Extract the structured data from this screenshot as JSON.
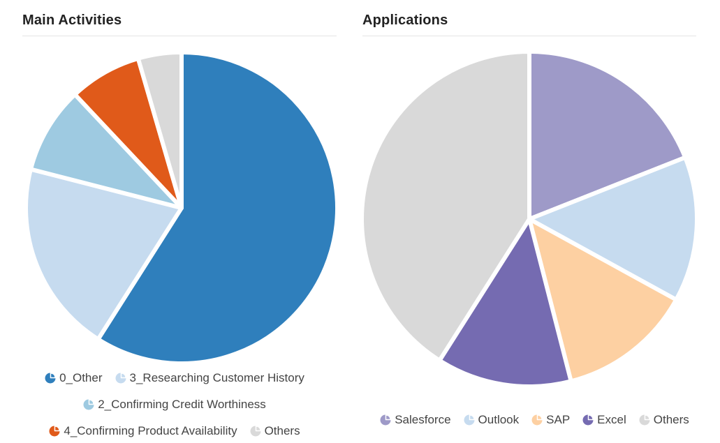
{
  "chart_data": [
    {
      "type": "pie",
      "title": "Main Activities",
      "slices": [
        {
          "label": "0_Other",
          "value": 59,
          "color": "#2f7fbc"
        },
        {
          "label": "3_Researching Customer History",
          "value": 20,
          "color": "#c6dbef"
        },
        {
          "label": "2_Confirming Credit Worthiness",
          "value": 9,
          "color": "#9ecae1"
        },
        {
          "label": "4_Confirming Product Availability",
          "value": 7.5,
          "color": "#e05a1a"
        },
        {
          "label": "Others",
          "value": 4.5,
          "color": "#d9d9d9"
        }
      ]
    },
    {
      "type": "pie",
      "title": "Applications",
      "slices": [
        {
          "label": "Salesforce",
          "value": 19,
          "color": "#9e9ac8"
        },
        {
          "label": "Outlook",
          "value": 14,
          "color": "#c6dbef"
        },
        {
          "label": "SAP",
          "value": 13,
          "color": "#fdd0a2"
        },
        {
          "label": "Excel",
          "value": 13,
          "color": "#756bb1"
        },
        {
          "label": "Others",
          "value": 41,
          "color": "#d9d9d9"
        }
      ]
    }
  ]
}
